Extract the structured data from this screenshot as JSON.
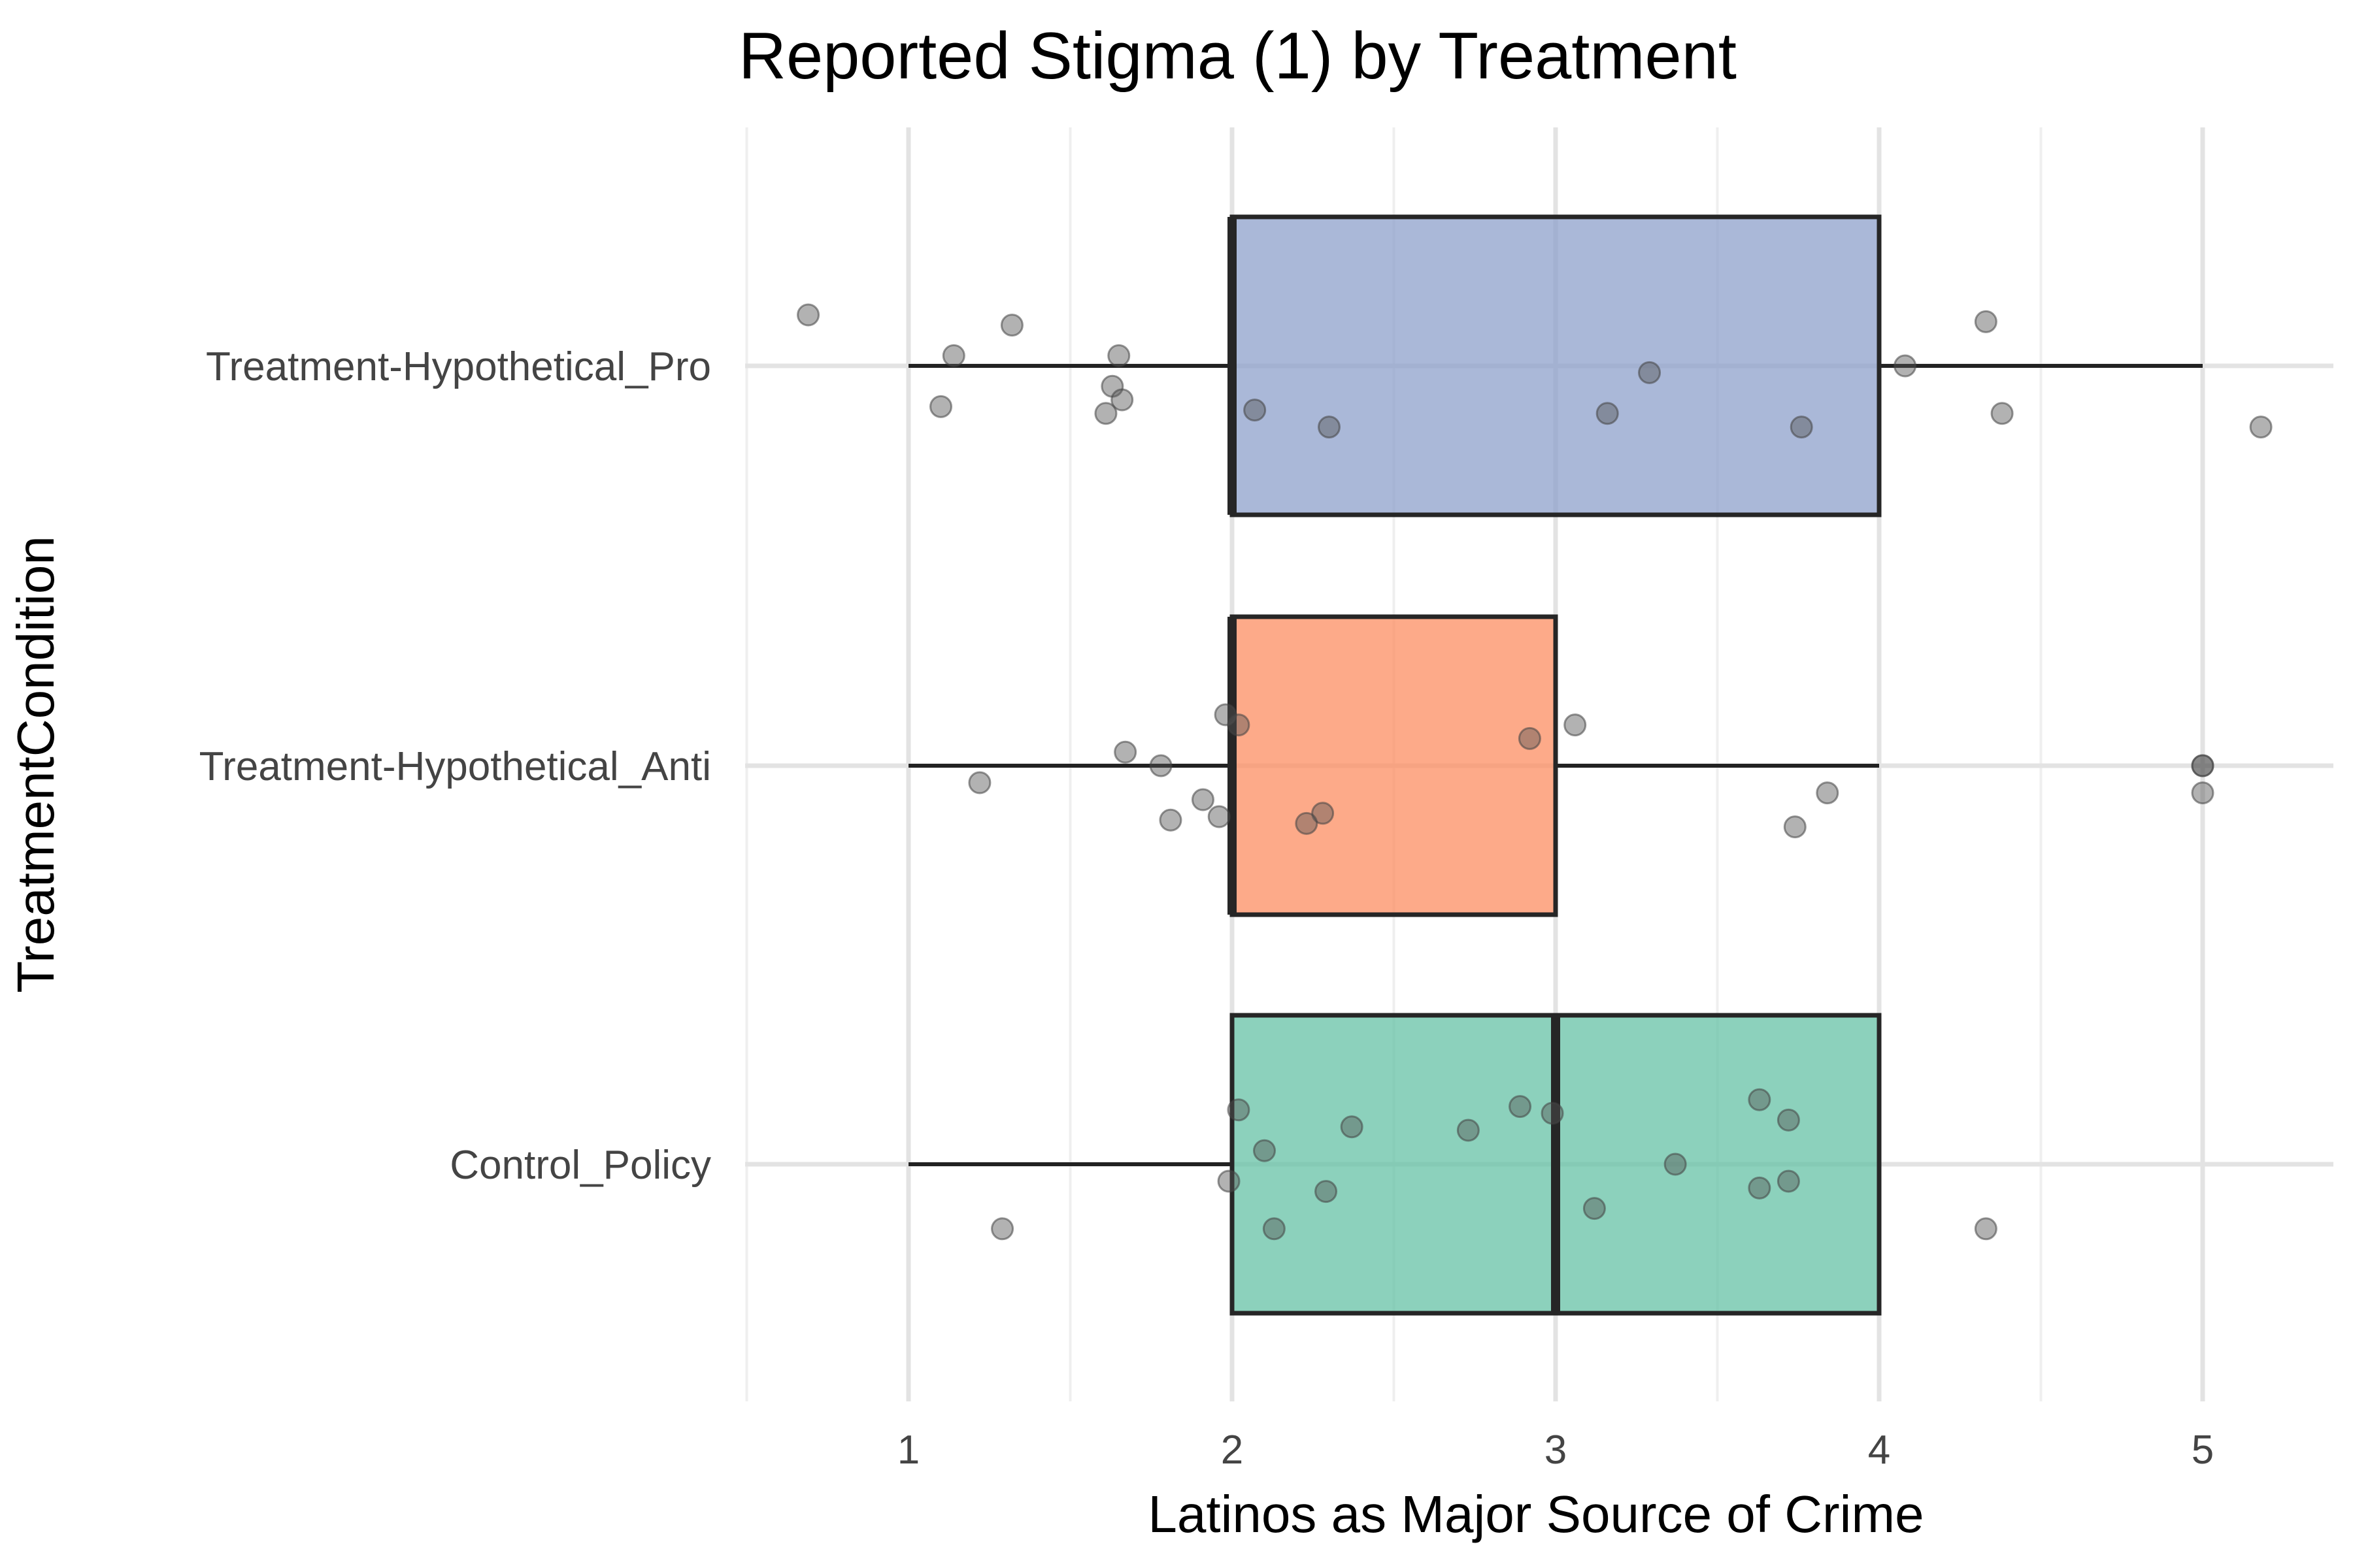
{
  "chart_data": {
    "type": "box",
    "orientation": "horizontal",
    "title": "Reported Stigma (1) by Treatment",
    "xlabel": "Latinos as Major Source of Crime",
    "ylabel": "TreatmentCondition",
    "xlim": [
      0.5,
      5.4
    ],
    "x_ticks": [
      1,
      2,
      3,
      4,
      5
    ],
    "grid": "on",
    "legend": "none",
    "categories": [
      "Treatment-Hypothetical_Pro",
      "Treatment-Hypothetical_Anti",
      "Control_Policy"
    ],
    "boxes": [
      {
        "category": "Treatment-Hypothetical_Pro",
        "min": 1,
        "q1": 2,
        "median": 2,
        "q3": 4,
        "max": 5,
        "fill": "#8da0cb",
        "points": [
          {
            "x": 0.69,
            "jitter": 0.15
          },
          {
            "x": 1.32,
            "jitter": 0.12
          },
          {
            "x": 1.14,
            "jitter": 0.03
          },
          {
            "x": 1.65,
            "jitter": 0.03
          },
          {
            "x": 1.1,
            "jitter": -0.12
          },
          {
            "x": 1.63,
            "jitter": -0.06
          },
          {
            "x": 1.66,
            "jitter": -0.1
          },
          {
            "x": 1.61,
            "jitter": -0.14
          },
          {
            "x": 2.07,
            "jitter": -0.13
          },
          {
            "x": 2.3,
            "jitter": -0.18
          },
          {
            "x": 3.29,
            "jitter": -0.02
          },
          {
            "x": 3.16,
            "jitter": -0.14
          },
          {
            "x": 3.76,
            "jitter": -0.18
          },
          {
            "x": 4.08,
            "jitter": 0.0
          },
          {
            "x": 4.33,
            "jitter": 0.13
          },
          {
            "x": 4.38,
            "jitter": -0.14
          },
          {
            "x": 5.18,
            "jitter": -0.18
          }
        ]
      },
      {
        "category": "Treatment-Hypothetical_Anti",
        "min": 1,
        "q1": 2,
        "median": 2,
        "q3": 3,
        "max": 4,
        "fill": "#fc8d62",
        "points": [
          {
            "x": 1.98,
            "jitter": 0.15
          },
          {
            "x": 2.02,
            "jitter": 0.12
          },
          {
            "x": 2.92,
            "jitter": 0.08
          },
          {
            "x": 3.06,
            "jitter": 0.12
          },
          {
            "x": 1.67,
            "jitter": 0.04
          },
          {
            "x": 1.78,
            "jitter": 0.0
          },
          {
            "x": 1.22,
            "jitter": -0.05
          },
          {
            "x": 1.91,
            "jitter": -0.1
          },
          {
            "x": 1.96,
            "jitter": -0.15
          },
          {
            "x": 1.81,
            "jitter": -0.16
          },
          {
            "x": 2.28,
            "jitter": -0.14
          },
          {
            "x": 2.23,
            "jitter": -0.17
          },
          {
            "x": 3.84,
            "jitter": -0.08
          },
          {
            "x": 3.74,
            "jitter": -0.18
          },
          {
            "x": 5.0,
            "jitter": 0.0
          },
          {
            "x": 5.0,
            "jitter": 0.0
          },
          {
            "x": 5.0,
            "jitter": -0.08
          }
        ]
      },
      {
        "category": "Control_Policy",
        "min": 1,
        "q1": 2,
        "median": 3,
        "q3": 4,
        "max": 4,
        "fill": "#66c2a5",
        "points": [
          {
            "x": 2.02,
            "jitter": 0.16
          },
          {
            "x": 2.37,
            "jitter": 0.11
          },
          {
            "x": 2.73,
            "jitter": 0.1
          },
          {
            "x": 2.89,
            "jitter": 0.17
          },
          {
            "x": 2.99,
            "jitter": 0.15
          },
          {
            "x": 2.1,
            "jitter": 0.04
          },
          {
            "x": 1.99,
            "jitter": -0.05
          },
          {
            "x": 2.29,
            "jitter": -0.08
          },
          {
            "x": 2.13,
            "jitter": -0.19
          },
          {
            "x": 1.29,
            "jitter": -0.19
          },
          {
            "x": 3.12,
            "jitter": -0.13
          },
          {
            "x": 3.37,
            "jitter": 0.0
          },
          {
            "x": 3.63,
            "jitter": 0.19
          },
          {
            "x": 3.72,
            "jitter": 0.13
          },
          {
            "x": 3.72,
            "jitter": -0.05
          },
          {
            "x": 3.63,
            "jitter": -0.07
          },
          {
            "x": 4.33,
            "jitter": -0.19
          }
        ]
      }
    ]
  }
}
